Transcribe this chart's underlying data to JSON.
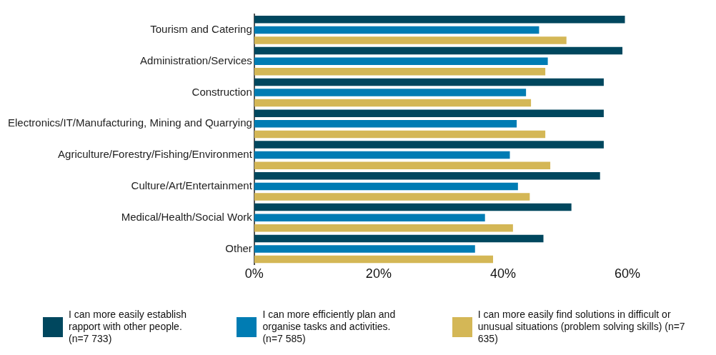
{
  "chart_data": {
    "type": "bar",
    "orientation": "horizontal",
    "categories": [
      "Tourism and Catering",
      "Administration/Services",
      "Construction",
      "Electronics/IT/Manufacturing, Mining and Quarrying",
      "Agriculture/Forestry/Fishing/Environment",
      "Culture/Art/Entertainment",
      "Medical/Health/Social Work",
      "Other"
    ],
    "series": [
      {
        "name": "I can more easily establish rapport with other people. (n=7 733)",
        "color": "#00475e",
        "values": [
          59.6,
          59.2,
          56.2,
          56.2,
          56.2,
          55.6,
          51.0,
          46.5
        ]
      },
      {
        "name": "I can more efficiently plan and organise tasks and activities. (n=7 585)",
        "color": "#007cb3",
        "values": [
          45.8,
          47.2,
          43.7,
          42.2,
          41.1,
          42.4,
          37.1,
          35.5
        ]
      },
      {
        "name": "I can more easily find solutions in difficult or unusual situations (problem solving skills) (n=7 635)",
        "color": "#d4b756",
        "values": [
          50.2,
          46.8,
          44.5,
          46.8,
          47.6,
          44.3,
          41.6,
          38.4
        ]
      }
    ],
    "xlim": [
      0,
      60
    ],
    "xticks": [
      {
        "value": 0,
        "label": "0%"
      },
      {
        "value": 20,
        "label": "20%"
      },
      {
        "value": 40,
        "label": "40%"
      },
      {
        "value": 60,
        "label": "60%"
      }
    ],
    "grid": false,
    "legend": "bottom"
  }
}
